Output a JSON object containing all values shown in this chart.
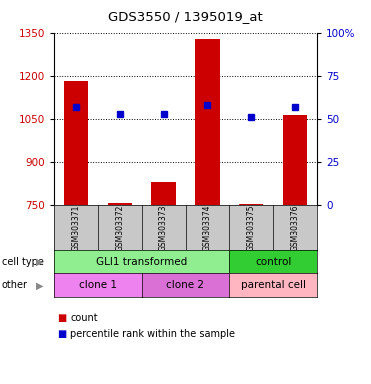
{
  "title": "GDS3550 / 1395019_at",
  "samples": [
    "GSM303371",
    "GSM303372",
    "GSM303373",
    "GSM303374",
    "GSM303375",
    "GSM303376"
  ],
  "count_values": [
    1183,
    757,
    830,
    1327,
    755,
    1065
  ],
  "percentile_values": [
    57,
    53,
    53,
    58,
    51,
    57
  ],
  "ylim_left": [
    750,
    1350
  ],
  "ylim_right": [
    0,
    100
  ],
  "yticks_left": [
    750,
    900,
    1050,
    1200,
    1350
  ],
  "yticks_right": [
    0,
    25,
    50,
    75,
    100
  ],
  "cell_type_groups": [
    {
      "label": "GLI1 transformed",
      "start": 0,
      "end": 3,
      "color": "#90EE90"
    },
    {
      "label": "control",
      "start": 4,
      "end": 5,
      "color": "#32CD32"
    }
  ],
  "other_groups": [
    {
      "label": "clone 1",
      "start": 0,
      "end": 1,
      "color": "#EE82EE"
    },
    {
      "label": "clone 2",
      "start": 2,
      "end": 3,
      "color": "#DA70D6"
    },
    {
      "label": "parental cell",
      "start": 4,
      "end": 5,
      "color": "#FFB6C1"
    }
  ],
  "bar_color": "#CC0000",
  "dot_color": "#0000CC",
  "left_axis_color": "#CC0000",
  "right_axis_color": "#0000CC",
  "bg_color": "#FFFFFF",
  "sample_bg_color": "#C8C8C8",
  "legend_count_label": "count",
  "legend_pct_label": "percentile rank within the sample"
}
